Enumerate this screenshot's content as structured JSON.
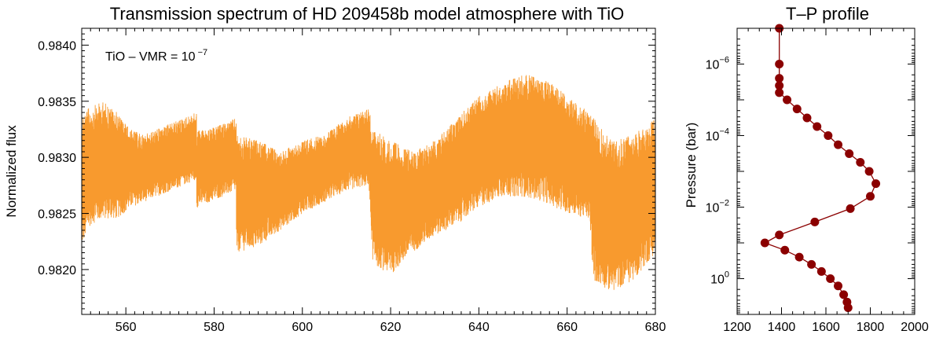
{
  "chart_data": [
    {
      "type": "area",
      "title": "Transmission spectrum of HD 209458b model atmosphere with TiO",
      "xlabel": "",
      "ylabel": "Normalized flux",
      "annotation": {
        "base": "TiO – VMR = 10",
        "exponent": "−7"
      },
      "xlim": [
        550,
        680
      ],
      "ylim": [
        0.9816,
        0.98415
      ],
      "xticks": [
        560,
        580,
        600,
        620,
        640,
        660,
        680
      ],
      "xtick_labels": [
        "560",
        "580",
        "600",
        "620",
        "640",
        "660",
        "680"
      ],
      "yticks": [
        0.982,
        0.9825,
        0.983,
        0.9835,
        0.984
      ],
      "ytick_labels": [
        "0.9820",
        "0.9825",
        "0.9830",
        "0.9835",
        "0.9840"
      ],
      "color": "#f89a2e",
      "series": [
        {
          "x": [
            550,
            552,
            555,
            558,
            561,
            564,
            567,
            570,
            573,
            576,
            576,
            579,
            582,
            585,
            585,
            590,
            595,
            600,
            605,
            610,
            615,
            616,
            620,
            625,
            630,
            635,
            640,
            645,
            650,
            655,
            660,
            665,
            666,
            670,
            675,
            680
          ],
          "low": [
            0.9822,
            0.9824,
            0.98245,
            0.98245,
            0.98255,
            0.9826,
            0.98265,
            0.9827,
            0.98275,
            0.9828,
            0.98255,
            0.9826,
            0.98265,
            0.9827,
            0.98215,
            0.9822,
            0.98235,
            0.9825,
            0.9826,
            0.9827,
            0.98275,
            0.98205,
            0.98195,
            0.98215,
            0.9823,
            0.9824,
            0.98255,
            0.98265,
            0.98265,
            0.9826,
            0.9825,
            0.98245,
            0.9819,
            0.9818,
            0.9819,
            0.98215
          ],
          "high": [
            0.9834,
            0.98345,
            0.9835,
            0.9834,
            0.98325,
            0.9832,
            0.98325,
            0.9833,
            0.98335,
            0.9834,
            0.98325,
            0.98325,
            0.9833,
            0.98335,
            0.9832,
            0.98315,
            0.98305,
            0.98315,
            0.9832,
            0.98335,
            0.98345,
            0.98325,
            0.98315,
            0.98305,
            0.98315,
            0.98335,
            0.98355,
            0.98365,
            0.98375,
            0.9837,
            0.98355,
            0.9834,
            0.98335,
            0.98315,
            0.9832,
            0.98335
          ]
        }
      ]
    },
    {
      "type": "line",
      "title": "T–P profile",
      "xlabel": "",
      "ylabel": "Pressure (bar)",
      "xlim": [
        1200,
        2000
      ],
      "ylim": [
        1e-07,
        10
      ],
      "yscale": "log",
      "yaxis_inverted": true,
      "xticks": [
        1200,
        1400,
        1600,
        1800,
        2000
      ],
      "xtick_labels": [
        "1200",
        "1400",
        "1600",
        "1800",
        "2000"
      ],
      "yticks": [
        1e-06,
        0.0001,
        0.01,
        1
      ],
      "ytick_labels": [
        {
          "base": "10",
          "exp": "−6"
        },
        {
          "base": "10",
          "exp": "−4"
        },
        {
          "base": "10",
          "exp": "−2"
        },
        {
          "base": "10",
          "exp": "0"
        }
      ],
      "color": "#8b0000",
      "series": [
        {
          "x": [
            1390,
            1390,
            1390,
            1390,
            1390,
            1425,
            1470,
            1515,
            1560,
            1610,
            1655,
            1705,
            1755,
            1795,
            1825,
            1800,
            1710,
            1550,
            1390,
            1325,
            1415,
            1480,
            1535,
            1580,
            1620,
            1655,
            1680,
            1695,
            1700
          ],
          "y": [
            1e-07,
            1e-06,
            2.5e-06,
            4e-06,
            6.3e-06,
            1e-05,
            1.8e-05,
            3.2e-05,
            5.6e-05,
            0.0001,
            0.00018,
            0.00032,
            0.00056,
            0.001,
            0.0022,
            0.005,
            0.011,
            0.026,
            0.06,
            0.1,
            0.16,
            0.25,
            0.4,
            0.63,
            1.0,
            1.6,
            2.8,
            4.5,
            6.5
          ]
        }
      ]
    }
  ]
}
